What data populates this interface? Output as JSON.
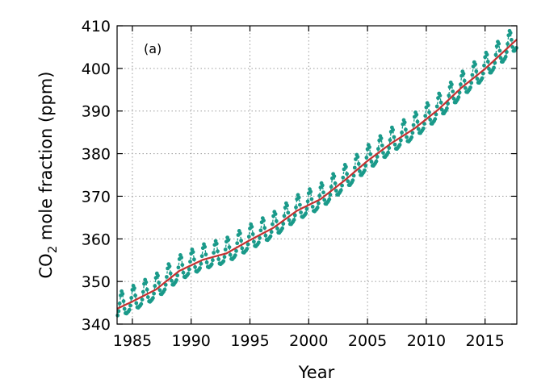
{
  "chart_data": {
    "type": "line",
    "panel_label": "(a)",
    "xlabel": "Year",
    "ylabel_main": "CO",
    "ylabel_sub": "2",
    "ylabel_rest": " mole fraction (ppm)",
    "xlim": [
      1983.7,
      2017.7
    ],
    "ylim": [
      340,
      410
    ],
    "xticks": [
      1985,
      1990,
      1995,
      2000,
      2005,
      2010,
      2015
    ],
    "yticks": [
      340,
      350,
      360,
      370,
      380,
      390,
      400,
      410
    ],
    "xtick_labels": [
      "1985",
      "1990",
      "1995",
      "2000",
      "2005",
      "2010",
      "2015"
    ],
    "ytick_labels": [
      "340",
      "350",
      "360",
      "370",
      "380",
      "390",
      "400",
      "410"
    ],
    "grid": true,
    "colors": {
      "observed": "#1a9a8a",
      "trend": "#c43030"
    },
    "series": [
      {
        "style": "trend",
        "x": [
          1983.7,
          1985,
          1987,
          1989,
          1991,
          1993,
          1995,
          1997,
          1999,
          2001,
          2003,
          2005,
          2007,
          2009,
          2011,
          2013,
          2015,
          2017.7
        ],
        "y": [
          343.6,
          345.3,
          348.1,
          352.5,
          355.1,
          356.6,
          359.7,
          362.6,
          366.6,
          369.3,
          373.6,
          378.3,
          382.4,
          385.9,
          390.3,
          395.5,
          399.9,
          406.8
        ]
      },
      {
        "style": "observed",
        "season_amplitude": 2.8,
        "x": [
          1983.7,
          1985,
          1987,
          1989,
          1991,
          1993,
          1995,
          1997,
          1999,
          2001,
          2003,
          2005,
          2007,
          2009,
          2011,
          2013,
          2015,
          2017.7
        ],
        "y": [
          343.6,
          345.3,
          348.1,
          352.5,
          355.1,
          356.6,
          359.7,
          362.6,
          366.6,
          369.3,
          373.6,
          378.3,
          382.4,
          385.9,
          390.3,
          395.5,
          399.9,
          406.8
        ]
      }
    ]
  }
}
